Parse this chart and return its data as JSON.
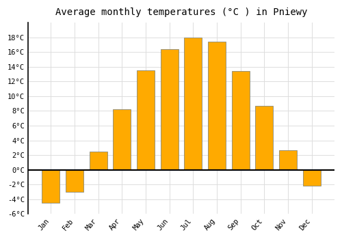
{
  "title": "Average monthly temperatures (°C ) in Pniewy",
  "months": [
    "Jan",
    "Feb",
    "Mar",
    "Apr",
    "May",
    "Jun",
    "Jul",
    "Aug",
    "Sep",
    "Oct",
    "Nov",
    "Dec"
  ],
  "values": [
    -4.5,
    -3.0,
    2.5,
    8.2,
    13.5,
    16.4,
    18.0,
    17.4,
    13.4,
    8.7,
    2.7,
    -2.2
  ],
  "bar_color": "#FFAA00",
  "bar_edge_color": "#888877",
  "ylim": [
    -6,
    20
  ],
  "yticks": [
    -6,
    -4,
    -2,
    0,
    2,
    4,
    6,
    8,
    10,
    12,
    14,
    16,
    18
  ],
  "ytick_labels": [
    "-6°C",
    "-4°C",
    "-2°C",
    "0°C",
    "2°C",
    "4°C",
    "6°C",
    "8°C",
    "10°C",
    "12°C",
    "14°C",
    "16°C",
    "18°C"
  ],
  "background_color": "#ffffff",
  "plot_bg_color": "#ffffff",
  "grid_color": "#dddddd",
  "zero_line_color": "#000000",
  "axis_line_color": "#000000",
  "title_fontsize": 10,
  "tick_fontsize": 7.5,
  "font_family": "monospace",
  "bar_width": 0.75
}
